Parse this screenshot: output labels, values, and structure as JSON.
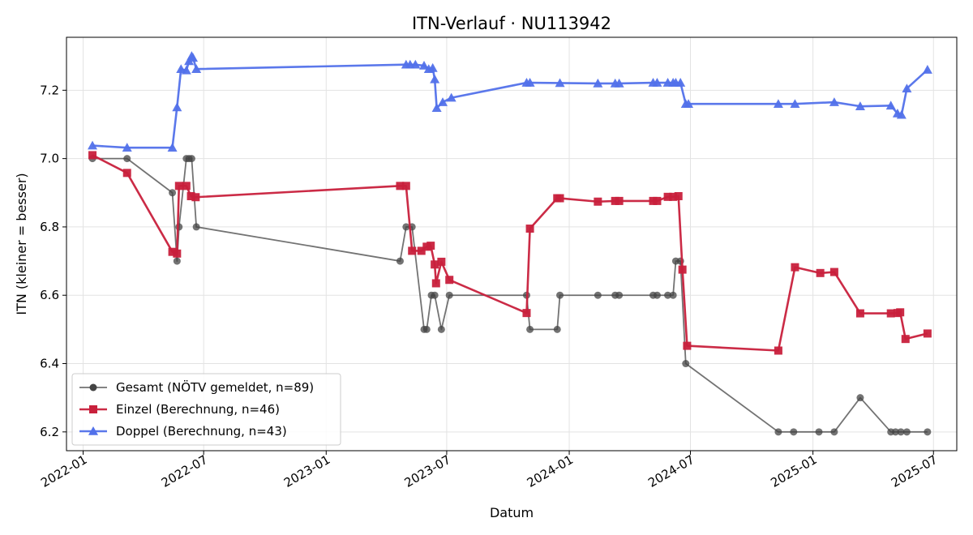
{
  "chart_data": {
    "type": "line",
    "title": "ITN-Verlauf · NU113942",
    "xlabel": "Datum",
    "ylabel": "ITN  (kleiner = besser)",
    "x_type": "date",
    "xlim": [
      "2021-12-07",
      "2025-08-05"
    ],
    "ylim": [
      6.145,
      7.355
    ],
    "x_ticks": [
      "2022-01-01",
      "2022-07-01",
      "2023-01-01",
      "2023-07-01",
      "2024-01-01",
      "2024-07-01",
      "2025-01-01",
      "2025-07-01"
    ],
    "x_tick_labels": [
      "2022-01",
      "2022-07",
      "2023-01",
      "2023-07",
      "2024-01",
      "2024-07",
      "2025-01",
      "2025-07"
    ],
    "y_ticks": [
      6.2,
      6.4,
      6.6,
      6.8,
      7.0,
      7.2
    ],
    "y_tick_labels": [
      "6.2",
      "6.4",
      "6.6",
      "6.8",
      "7.0",
      "7.2"
    ],
    "grid": true,
    "legend_position": "lower-left",
    "series": [
      {
        "name": "Gesamt (NÖTV gemeldet, n=89)",
        "color": "#444444",
        "marker": "circle",
        "points": [
          [
            "2022-01-15",
            7.0
          ],
          [
            "2022-03-08",
            7.0
          ],
          [
            "2022-05-15",
            6.9
          ],
          [
            "2022-05-22",
            6.7
          ],
          [
            "2022-05-25",
            6.8
          ],
          [
            "2022-06-05",
            7.0
          ],
          [
            "2022-06-09",
            7.0
          ],
          [
            "2022-06-13",
            7.0
          ],
          [
            "2022-06-20",
            6.8
          ],
          [
            "2023-04-22",
            6.7
          ],
          [
            "2023-05-01",
            6.8
          ],
          [
            "2023-05-10",
            6.8
          ],
          [
            "2023-05-28",
            6.5
          ],
          [
            "2023-06-01",
            6.5
          ],
          [
            "2023-06-08",
            6.6
          ],
          [
            "2023-06-13",
            6.6
          ],
          [
            "2023-06-23",
            6.5
          ],
          [
            "2023-07-05",
            6.6
          ],
          [
            "2023-10-29",
            6.6
          ],
          [
            "2023-11-03",
            6.5
          ],
          [
            "2023-12-14",
            6.5
          ],
          [
            "2023-12-18",
            6.6
          ],
          [
            "2024-02-13",
            6.6
          ],
          [
            "2024-03-10",
            6.6
          ],
          [
            "2024-03-16",
            6.6
          ],
          [
            "2024-05-06",
            6.6
          ],
          [
            "2024-05-12",
            6.6
          ],
          [
            "2024-05-28",
            6.6
          ],
          [
            "2024-06-05",
            6.6
          ],
          [
            "2024-06-09",
            6.7
          ],
          [
            "2024-06-16",
            6.7
          ],
          [
            "2024-06-24",
            6.4
          ],
          [
            "2024-11-10",
            6.2
          ],
          [
            "2024-12-03",
            6.2
          ],
          [
            "2025-01-10",
            6.2
          ],
          [
            "2025-02-02",
            6.2
          ],
          [
            "2025-03-13",
            6.3
          ],
          [
            "2025-04-28",
            6.2
          ],
          [
            "2025-05-05",
            6.2
          ],
          [
            "2025-05-13",
            6.2
          ],
          [
            "2025-05-22",
            6.2
          ],
          [
            "2025-06-22",
            6.2
          ]
        ]
      },
      {
        "name": "Einzel (Berechnung, n=46)",
        "color": "#c8203c",
        "marker": "square",
        "points": [
          [
            "2022-01-15",
            7.01
          ],
          [
            "2022-03-08",
            6.958
          ],
          [
            "2022-05-15",
            6.727
          ],
          [
            "2022-05-22",
            6.722
          ],
          [
            "2022-05-25",
            6.92
          ],
          [
            "2022-06-05",
            6.92
          ],
          [
            "2022-06-12",
            6.89
          ],
          [
            "2022-06-19",
            6.887
          ],
          [
            "2023-04-22",
            6.92
          ],
          [
            "2023-05-01",
            6.92
          ],
          [
            "2023-05-10",
            6.73
          ],
          [
            "2023-05-24",
            6.73
          ],
          [
            "2023-06-01",
            6.742
          ],
          [
            "2023-06-07",
            6.745
          ],
          [
            "2023-06-13",
            6.69
          ],
          [
            "2023-06-15",
            6.635
          ],
          [
            "2023-06-23",
            6.698
          ],
          [
            "2023-07-05",
            6.645
          ],
          [
            "2023-10-29",
            6.548
          ],
          [
            "2023-11-03",
            6.795
          ],
          [
            "2023-12-14",
            6.884
          ],
          [
            "2023-12-18",
            6.884
          ],
          [
            "2024-02-13",
            6.874
          ],
          [
            "2024-03-10",
            6.876
          ],
          [
            "2024-03-16",
            6.876
          ],
          [
            "2024-05-06",
            6.876
          ],
          [
            "2024-05-12",
            6.876
          ],
          [
            "2024-05-28",
            6.888
          ],
          [
            "2024-06-05",
            6.888
          ],
          [
            "2024-06-13",
            6.89
          ],
          [
            "2024-06-19",
            6.675
          ],
          [
            "2024-06-26",
            6.452
          ],
          [
            "2024-11-10",
            6.438
          ],
          [
            "2024-12-05",
            6.682
          ],
          [
            "2025-01-12",
            6.665
          ],
          [
            "2025-02-02",
            6.668
          ],
          [
            "2025-03-13",
            6.547
          ],
          [
            "2025-04-28",
            6.547
          ],
          [
            "2025-05-08",
            6.548
          ],
          [
            "2025-05-12",
            6.55
          ],
          [
            "2025-05-20",
            6.472
          ],
          [
            "2025-06-22",
            6.488
          ]
        ]
      },
      {
        "name": "Doppel (Berechnung, n=43)",
        "color": "#5271ea",
        "marker": "triangle",
        "points": [
          [
            "2022-01-15",
            7.038
          ],
          [
            "2022-03-08",
            7.032
          ],
          [
            "2022-05-15",
            7.032
          ],
          [
            "2022-05-22",
            7.15
          ],
          [
            "2022-05-28",
            7.262
          ],
          [
            "2022-06-05",
            7.258
          ],
          [
            "2022-06-09",
            7.285
          ],
          [
            "2022-06-13",
            7.3
          ],
          [
            "2022-06-15",
            7.295
          ],
          [
            "2022-06-20",
            7.262
          ],
          [
            "2023-05-01",
            7.275
          ],
          [
            "2023-05-07",
            7.275
          ],
          [
            "2023-05-15",
            7.275
          ],
          [
            "2023-05-28",
            7.272
          ],
          [
            "2023-06-04",
            7.262
          ],
          [
            "2023-06-10",
            7.265
          ],
          [
            "2023-06-13",
            7.232
          ],
          [
            "2023-06-16",
            7.148
          ],
          [
            "2023-06-25",
            7.165
          ],
          [
            "2023-07-08",
            7.178
          ],
          [
            "2023-10-29",
            7.222
          ],
          [
            "2023-11-03",
            7.222
          ],
          [
            "2023-12-18",
            7.221
          ],
          [
            "2024-02-13",
            7.22
          ],
          [
            "2024-03-10",
            7.22
          ],
          [
            "2024-03-16",
            7.22
          ],
          [
            "2024-05-06",
            7.222
          ],
          [
            "2024-05-12",
            7.222
          ],
          [
            "2024-05-28",
            7.222
          ],
          [
            "2024-06-05",
            7.222
          ],
          [
            "2024-06-09",
            7.222
          ],
          [
            "2024-06-16",
            7.222
          ],
          [
            "2024-06-24",
            7.16
          ],
          [
            "2024-06-28",
            7.16
          ],
          [
            "2024-11-10",
            7.16
          ],
          [
            "2024-12-05",
            7.16
          ],
          [
            "2025-02-02",
            7.165
          ],
          [
            "2025-03-13",
            7.153
          ],
          [
            "2025-04-28",
            7.155
          ],
          [
            "2025-05-08",
            7.132
          ],
          [
            "2025-05-14",
            7.128
          ],
          [
            "2025-05-22",
            7.205
          ],
          [
            "2025-06-22",
            7.26
          ]
        ]
      }
    ]
  }
}
